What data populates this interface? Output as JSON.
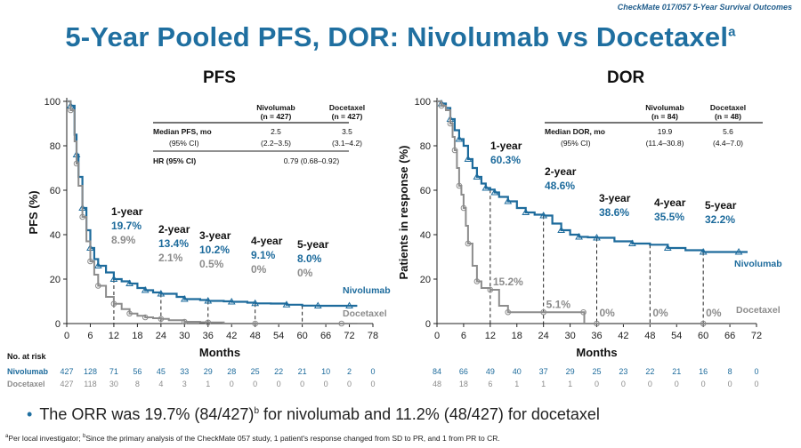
{
  "header": {
    "brand": "CheckMate 017/057 5-Year Survival Outcomes",
    "title": "5-Year Pooled PFS, DOR: Nivolumab vs Docetaxel",
    "title_sup": "a",
    "bullet": "The ORR was 19.7% (84/427)",
    "bullet_sup": "b",
    "bullet_tail": " for nivolumab and 11.2% (48/427) for docetaxel",
    "footnote": "Per local investigator; ",
    "footnote_a": "a",
    "footnote_b": "b",
    "footnote_tail": "Since the primary analysis of the CheckMate 057 study, 1 patient's response changed from SD to PR, and 1 from PR to CR."
  },
  "colors": {
    "nivolumab": "#1d6b9c",
    "docetaxel": "#8c8c8c",
    "accent": "#1f6fa0"
  },
  "chart_data": [
    {
      "type": "line",
      "title": "PFS",
      "xlabel": "Months",
      "ylabel": "PFS (%)",
      "xlim": [
        0,
        78
      ],
      "ylim": [
        0,
        100
      ],
      "xticks": [
        0,
        6,
        12,
        18,
        24,
        30,
        36,
        42,
        48,
        54,
        60,
        66,
        72,
        78
      ],
      "yticks": [
        0,
        20,
        40,
        60,
        80,
        100
      ],
      "series": [
        {
          "name": "Nivolumab",
          "x": [
            0,
            1,
            2,
            2.5,
            3,
            4,
            5,
            6,
            7,
            8,
            10,
            12,
            14,
            16,
            18,
            20,
            22,
            24,
            28,
            30,
            34,
            36,
            40,
            42,
            46,
            48,
            52,
            56,
            60,
            64,
            68,
            72,
            74
          ],
          "y": [
            100,
            98,
            85,
            76,
            66,
            52,
            42,
            34,
            29,
            26,
            23,
            20,
            19,
            18,
            16,
            15,
            14,
            13.4,
            12,
            11,
            10.6,
            10.2,
            10,
            9.8,
            9.4,
            9.1,
            9,
            8.5,
            8.1,
            8,
            8,
            8,
            8
          ]
        },
        {
          "name": "Docetaxel",
          "x": [
            0,
            1,
            2,
            2.5,
            3,
            4,
            5,
            6,
            7,
            8,
            10,
            12,
            14,
            16,
            18,
            20,
            22,
            24,
            26,
            30,
            34,
            36,
            40,
            48,
            60,
            70,
            74
          ],
          "y": [
            100,
            96,
            82,
            72,
            62,
            48,
            37,
            28,
            22,
            17,
            12,
            8.9,
            6.5,
            4.5,
            3.5,
            2.8,
            2.4,
            2.1,
            1.5,
            0.8,
            0.6,
            0.5,
            0,
            0,
            0,
            0,
            0
          ]
        }
      ],
      "landmarks": [
        {
          "x": 12,
          "label": "1-year",
          "niv": "19.7%",
          "doc": "8.9%"
        },
        {
          "x": 24,
          "label": "2-year",
          "niv": "13.4%",
          "doc": "2.1%"
        },
        {
          "x": 36,
          "label": "3-year",
          "niv": "10.2%",
          "doc": "0.5%"
        },
        {
          "x": 48,
          "label": "4-year",
          "niv": "9.1%",
          "doc": "0%"
        },
        {
          "x": 60,
          "label": "5-year",
          "niv": "8.0%",
          "doc": "0%"
        }
      ],
      "table": {
        "col1": [
          "Nivolumab",
          "(n = 427)"
        ],
        "col2": [
          "Docetaxel",
          "(n = 427)"
        ],
        "rows": [
          {
            "label": "Median PFS, mo",
            "v1": "2.5",
            "v2": "3.5"
          },
          {
            "label": "(95% CI)",
            "v1": "(2.2–3.5)",
            "v2": "(3.1–4.2)"
          }
        ],
        "hr_label": "HR (95% CI)",
        "hr_value": "0.79 (0.68–0.92)"
      },
      "risk": {
        "title": "No. at risk",
        "nivolumab": [
          "427",
          "128",
          "71",
          "56",
          "45",
          "33",
          "29",
          "28",
          "25",
          "22",
          "21",
          "10",
          "2",
          "0"
        ],
        "docetaxel": [
          "427",
          "118",
          "30",
          "8",
          "4",
          "3",
          "1",
          "0",
          "0",
          "0",
          "0",
          "0",
          "0",
          "0"
        ]
      }
    },
    {
      "type": "line",
      "title": "DOR",
      "xlabel": "Months",
      "ylabel": "Patients in response (%)",
      "xlim": [
        0,
        72
      ],
      "ylim": [
        0,
        100
      ],
      "xticks": [
        0,
        6,
        12,
        18,
        24,
        30,
        36,
        42,
        48,
        54,
        60,
        66,
        72
      ],
      "yticks": [
        0,
        20,
        40,
        60,
        80,
        100
      ],
      "series": [
        {
          "name": "Nivolumab",
          "x": [
            0,
            1,
            2,
            3,
            4,
            5,
            6,
            7,
            8,
            9,
            10,
            11,
            12,
            13,
            14,
            16,
            18,
            20,
            22,
            24,
            26,
            28,
            30,
            32,
            34,
            36,
            40,
            44,
            48,
            52,
            56,
            60,
            64,
            68,
            70
          ],
          "y": [
            100,
            99,
            97,
            92,
            87,
            83,
            80,
            74,
            70,
            66,
            63,
            61,
            60.3,
            59,
            57,
            55,
            52,
            50,
            49,
            48.6,
            45,
            42,
            40,
            39,
            38.8,
            38.6,
            37,
            36,
            35.5,
            34,
            33,
            32.2,
            32.2,
            32.2,
            32.2
          ]
        },
        {
          "name": "Docetaxel",
          "x": [
            0,
            1,
            2,
            3,
            3.5,
            4,
            4.5,
            5,
            5.5,
            6,
            6.5,
            7,
            8,
            9,
            10,
            12,
            14,
            16,
            20,
            24,
            28,
            33,
            33.2,
            36,
            48,
            60,
            67
          ],
          "y": [
            100,
            98,
            96,
            90,
            84,
            78,
            70,
            62,
            58,
            52,
            44,
            36,
            26,
            19,
            16,
            15.2,
            8,
            5.1,
            5.1,
            5.1,
            5.1,
            5.1,
            0,
            0,
            0,
            0,
            0
          ]
        }
      ],
      "landmarks": [
        {
          "x": 12,
          "label": "1-year",
          "niv": "60.3%",
          "doc": "15.2%"
        },
        {
          "x": 24,
          "label": "2-year",
          "niv": "48.6%",
          "doc": "5.1%"
        },
        {
          "x": 36,
          "label": "3-year",
          "niv": "38.6%",
          "doc": "0%"
        },
        {
          "x": 48,
          "label": "4-year",
          "niv": "35.5%",
          "doc": "0%"
        },
        {
          "x": 60,
          "label": "5-year",
          "niv": "32.2%",
          "doc": "0%"
        }
      ],
      "table": {
        "col1": [
          "Nivolumab",
          "(n = 84)"
        ],
        "col2": [
          "Docetaxel",
          "(n = 48)"
        ],
        "rows": [
          {
            "label": "Median DOR, mo",
            "v1": "19.9",
            "v2": "5.6"
          },
          {
            "label": "(95% CI)",
            "v1": "(11.4–30.8)",
            "v2": "(4.4–7.0)"
          }
        ]
      },
      "risk": {
        "nivolumab": [
          "84",
          "66",
          "49",
          "40",
          "37",
          "29",
          "25",
          "23",
          "22",
          "21",
          "16",
          "8",
          "0"
        ],
        "docetaxel": [
          "48",
          "18",
          "6",
          "1",
          "1",
          "1",
          "0",
          "0",
          "0",
          "0",
          "0",
          "0",
          "0"
        ]
      }
    }
  ]
}
